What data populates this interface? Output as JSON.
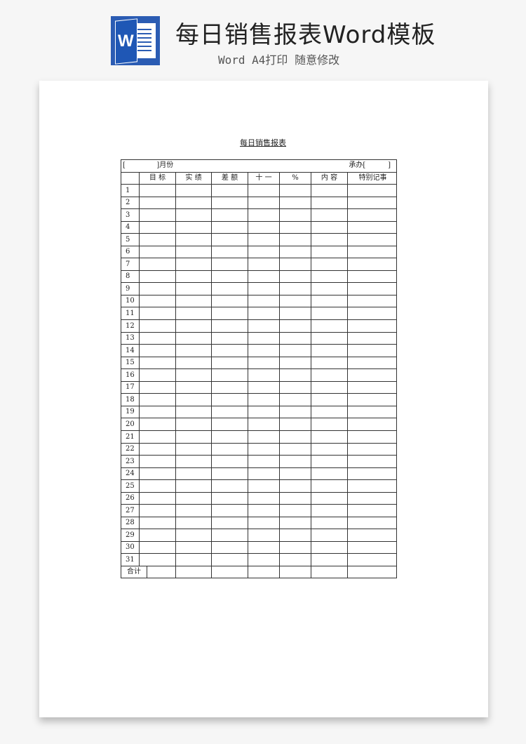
{
  "banner": {
    "title": "每日销售报表Word模板",
    "subtitle": "Word A4打印 随意修改",
    "logo_letter": "W",
    "brand_color": "#2b5cb3"
  },
  "document": {
    "title": "每日销售报表",
    "month_label": "[              ]月份",
    "handler_label": "承办[          ]",
    "headers": [
      "",
      "目 标",
      "实 绩",
      "差 额",
      "十 一",
      "%",
      "内 容",
      "特别记事"
    ],
    "days": [
      "1",
      "2",
      "3",
      "4",
      "5",
      "6",
      "7",
      "8",
      "9",
      "10",
      "11",
      "12",
      "13",
      "14",
      "15",
      "16",
      "17",
      "18",
      "19",
      "20",
      "21",
      "22",
      "23",
      "24",
      "25",
      "26",
      "27",
      "28",
      "29",
      "30",
      "31"
    ],
    "total_label": "合计"
  }
}
